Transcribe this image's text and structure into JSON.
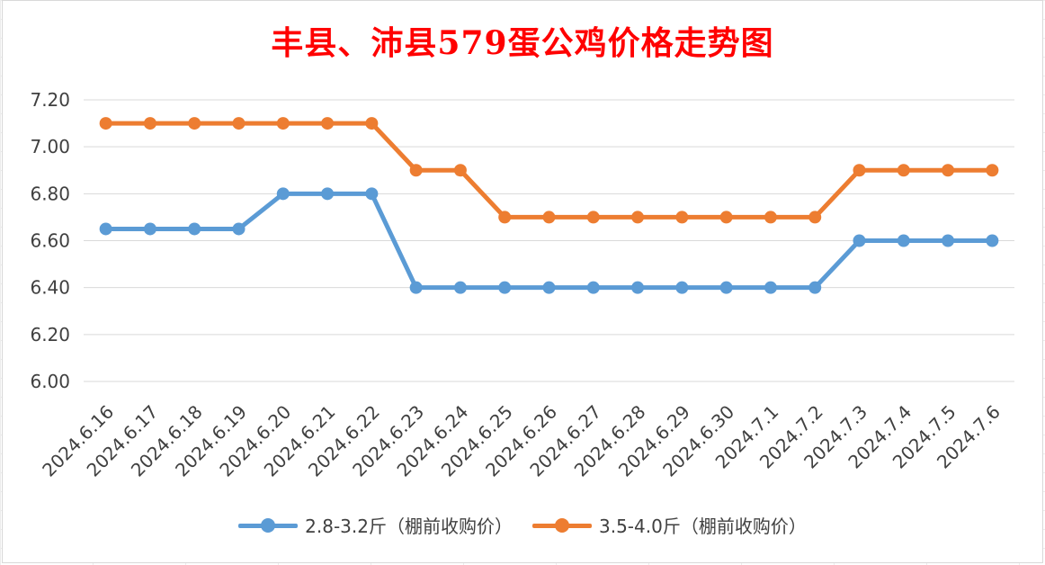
{
  "chart_data": {
    "type": "line",
    "title": "丰县、沛县579蛋公鸡价格走势图",
    "categories": [
      "2024.6.16",
      "2024.6.17",
      "2024.6.18",
      "2024.6.19",
      "2024.6.20",
      "2024.6.21",
      "2024.6.22",
      "2024.6.23",
      "2024.6.24",
      "2024.6.25",
      "2024.6.26",
      "2024.6.27",
      "2024.6.28",
      "2024.6.29",
      "2024.6.30",
      "2024.7.1",
      "2024.7.2",
      "2024.7.3",
      "2024.7.4",
      "2024.7.5",
      "2024.7.6"
    ],
    "series": [
      {
        "name": "2.8-3.2斤（棚前收购价）",
        "color": "#5b9bd5",
        "values": [
          6.65,
          6.65,
          6.65,
          6.65,
          6.8,
          6.8,
          6.8,
          6.4,
          6.4,
          6.4,
          6.4,
          6.4,
          6.4,
          6.4,
          6.4,
          6.4,
          6.4,
          6.6,
          6.6,
          6.6,
          6.6
        ]
      },
      {
        "name": "3.5-4.0斤（棚前收购价）",
        "color": "#ed7d31",
        "values": [
          7.1,
          7.1,
          7.1,
          7.1,
          7.1,
          7.1,
          7.1,
          6.9,
          6.9,
          6.7,
          6.7,
          6.7,
          6.7,
          6.7,
          6.7,
          6.7,
          6.7,
          6.9,
          6.9,
          6.9,
          6.9
        ]
      }
    ],
    "ylim": [
      6.0,
      7.2
    ],
    "yticks": [
      "6.00",
      "6.20",
      "6.40",
      "6.60",
      "6.80",
      "7.00",
      "7.20"
    ],
    "grid": true,
    "legend": "bottom"
  }
}
